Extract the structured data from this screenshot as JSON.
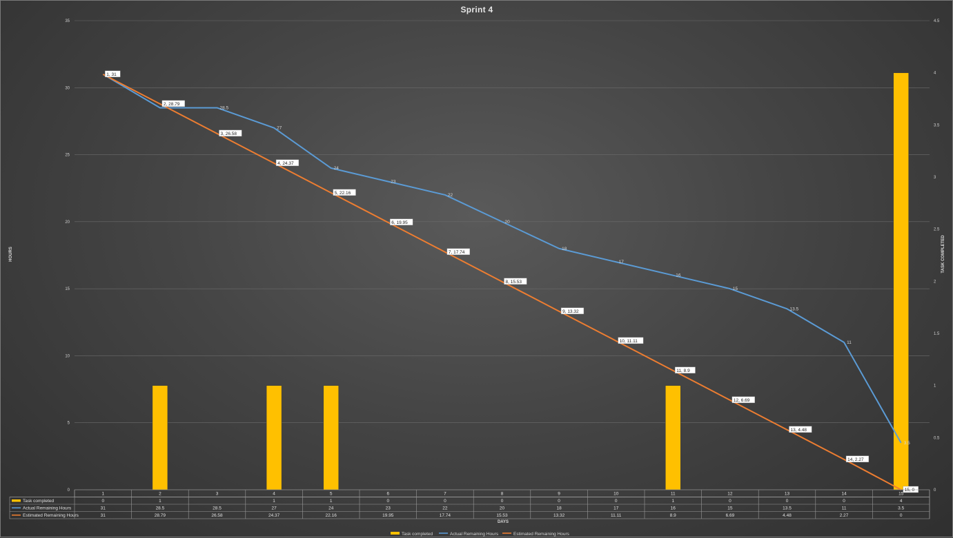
{
  "chart_data": {
    "type": "bar+line",
    "title": "Sprint 4",
    "xlabel": "DAYS",
    "ylabel": "HOURS",
    "y2label": "TASK COMPLETED",
    "categories": [
      "1",
      "2",
      "3",
      "4",
      "5",
      "6",
      "7",
      "8",
      "9",
      "10",
      "11",
      "12",
      "13",
      "14",
      "15"
    ],
    "ylim": [
      0,
      35
    ],
    "y_ticks": [
      "0",
      "5",
      "10",
      "15",
      "20",
      "25",
      "30",
      "35"
    ],
    "y2lim": [
      0,
      4.5
    ],
    "y2_ticks": [
      "0",
      "0.5",
      "1",
      "1.5",
      "2",
      "2.5",
      "3",
      "3.5",
      "4",
      "4.5"
    ],
    "grid": true,
    "legend_position": "bottom",
    "series": [
      {
        "name": "Task completed",
        "kind": "bar",
        "axis": "secondary",
        "color": "#FFC000",
        "values": [
          0,
          1,
          null,
          1,
          1,
          0,
          0,
          0,
          0,
          0,
          1,
          0,
          0,
          0,
          4
        ],
        "table_values": [
          "0",
          "1",
          "",
          "1",
          "1",
          "0",
          "0",
          "0",
          "0",
          "0",
          "1",
          "0",
          "0",
          "0",
          "4"
        ]
      },
      {
        "name": "Actual Remaining Hours",
        "kind": "line",
        "axis": "primary",
        "color": "#5B9BD5",
        "values": [
          31,
          28.5,
          28.5,
          27,
          24,
          23,
          22,
          20,
          18,
          17,
          16,
          15,
          13.5,
          11,
          3.5
        ],
        "table_values": [
          "31",
          "28.5",
          "28.5",
          "27",
          "24",
          "23",
          "22",
          "20",
          "18",
          "17",
          "16",
          "15",
          "13.5",
          "11",
          "3.5"
        ],
        "data_labels": [
          "",
          "",
          "28.5",
          "27",
          "24",
          "23",
          "22",
          "20",
          "18",
          "17",
          "16",
          "15",
          "13.5",
          "11",
          "3.5"
        ]
      },
      {
        "name": "Estimated Remaining Hours",
        "kind": "line",
        "axis": "primary",
        "color": "#ED7D31",
        "values": [
          31,
          28.79,
          26.58,
          24.37,
          22.16,
          19.95,
          17.74,
          15.53,
          13.32,
          11.11,
          8.9,
          6.69,
          4.48,
          2.27,
          0
        ],
        "table_values": [
          "31",
          "28.79",
          "26.58",
          "24.37",
          "22.16",
          "19.95",
          "17.74",
          "15.53",
          "13.32",
          "11.11",
          "8.9",
          "6.69",
          "4.48",
          "2.27",
          "0"
        ],
        "data_labels": [
          "1, 31",
          "2, 28.79",
          "3, 26.58",
          "4, 24.37",
          "5, 22.16",
          "6, 19.95",
          "7, 17.74",
          "8, 15.53",
          "9, 13.32",
          "10, 11.11",
          "11, 8.9",
          "12, 6.69",
          "13, 4.48",
          "14, 2.27",
          "15, 0"
        ]
      }
    ]
  }
}
